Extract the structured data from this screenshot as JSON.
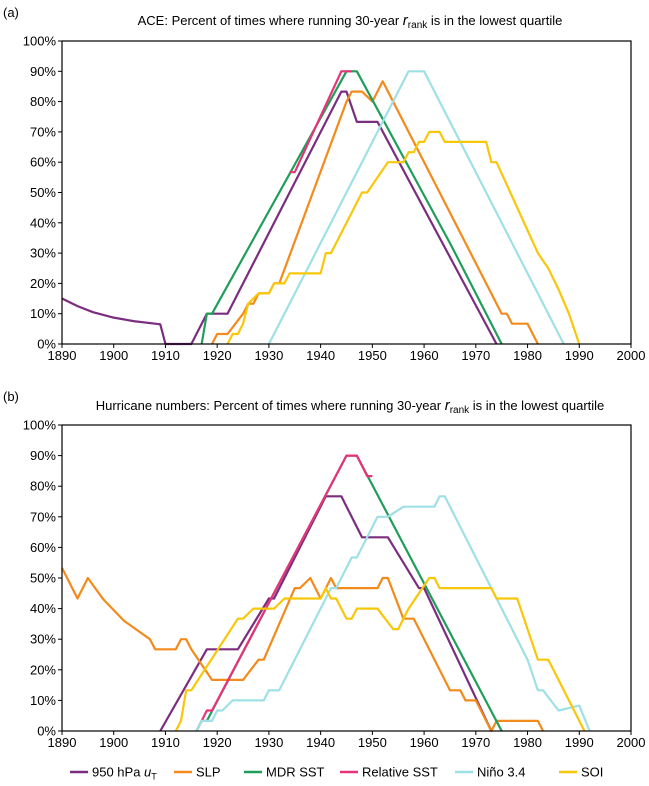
{
  "colors": {
    "wind": "#7b2d7f",
    "slp": "#f28a1c",
    "mdr": "#1f9e5a",
    "rel": "#e8337a",
    "nino": "#9fe0e6",
    "soi": "#f7c70a"
  },
  "legend": {
    "items": [
      {
        "key": "wind",
        "label": "950 hPa u",
        "sub": "T"
      },
      {
        "key": "slp",
        "label": "SLP",
        "sub": ""
      },
      {
        "key": "mdr",
        "label": "MDR SST",
        "sub": ""
      },
      {
        "key": "rel",
        "label": "Relative SST",
        "sub": ""
      },
      {
        "key": "nino",
        "label": "Niño 3.4",
        "sub": ""
      },
      {
        "key": "soi",
        "label": "SOI",
        "sub": ""
      }
    ]
  },
  "chart_data": [
    {
      "type": "line",
      "panel_label": "(a)",
      "title_pre": "ACE: Percent of times where running 30-year ",
      "title_r": "r",
      "title_sub": "rank",
      "title_post": " is in the lowest quartile",
      "xlim": [
        1890,
        2000
      ],
      "ylim": [
        0,
        100
      ],
      "xticks": [
        1890,
        1900,
        1910,
        1920,
        1930,
        1940,
        1950,
        1960,
        1970,
        1980,
        1990,
        2000
      ],
      "yticks": [
        "0%",
        "10%",
        "20%",
        "30%",
        "40%",
        "50%",
        "60%",
        "70%",
        "80%",
        "90%",
        "100%"
      ],
      "series": [
        {
          "key": "wind",
          "points": [
            [
              1890,
              15
            ],
            [
              1893,
              12.5
            ],
            [
              1896,
              10.5
            ],
            [
              1900,
              8.7
            ],
            [
              1904,
              7.5
            ],
            [
              1908,
              6.7
            ],
            [
              1909,
              6.5
            ],
            [
              1910,
              0
            ],
            [
              1915,
              0
            ],
            [
              1918,
              10
            ],
            [
              1922,
              10
            ],
            [
              1944,
              83.3
            ],
            [
              1945,
              83.3
            ],
            [
              1947,
              73.3
            ],
            [
              1951,
              73.3
            ],
            [
              1974,
              0
            ]
          ]
        },
        {
          "key": "slp",
          "points": [
            [
              1919,
              0
            ],
            [
              1920,
              3.3
            ],
            [
              1922,
              3.3
            ],
            [
              1925,
              10
            ],
            [
              1926,
              13.3
            ],
            [
              1927,
              13.3
            ],
            [
              1928,
              16.7
            ],
            [
              1930,
              16.7
            ],
            [
              1931,
              20
            ],
            [
              1932,
              20
            ],
            [
              1945,
              80
            ],
            [
              1946,
              83.3
            ],
            [
              1948,
              83.3
            ],
            [
              1950,
              80
            ],
            [
              1952,
              86.7
            ],
            [
              1975,
              10
            ],
            [
              1976,
              10
            ],
            [
              1977,
              6.7
            ],
            [
              1980,
              6.7
            ],
            [
              1982,
              0
            ]
          ]
        },
        {
          "key": "mdr",
          "points": [
            [
              1917,
              0
            ],
            [
              1918,
              10
            ],
            [
              1919,
              10
            ],
            [
              1945,
              90
            ],
            [
              1947,
              90
            ],
            [
              1965,
              33.3
            ],
            [
              1966,
              30
            ],
            [
              1975,
              0
            ]
          ]
        },
        {
          "key": "rel",
          "points": [
            [
              1934,
              56.7
            ],
            [
              1935,
              56.7
            ],
            [
              1944,
              90
            ],
            [
              1946,
              90
            ]
          ]
        },
        {
          "key": "nino",
          "points": [
            [
              1930,
              0
            ],
            [
              1957,
              90
            ],
            [
              1960,
              90
            ],
            [
              1987,
              0
            ]
          ]
        },
        {
          "key": "soi",
          "points": [
            [
              1922,
              0
            ],
            [
              1923,
              3.3
            ],
            [
              1924,
              3.3
            ],
            [
              1925,
              6.7
            ],
            [
              1926,
              13.3
            ],
            [
              1928,
              16.7
            ],
            [
              1930,
              16.7
            ],
            [
              1931,
              20
            ],
            [
              1933,
              20
            ],
            [
              1934,
              23.3
            ],
            [
              1940,
              23.3
            ],
            [
              1941,
              30
            ],
            [
              1942,
              30
            ],
            [
              1948,
              50
            ],
            [
              1949,
              50
            ],
            [
              1953,
              60
            ],
            [
              1956,
              60
            ],
            [
              1957,
              63.3
            ],
            [
              1958,
              63.3
            ],
            [
              1959,
              66.7
            ],
            [
              1960,
              66.7
            ],
            [
              1961,
              70
            ],
            [
              1963,
              70
            ],
            [
              1964,
              66.7
            ],
            [
              1972,
              66.7
            ],
            [
              1973,
              60
            ],
            [
              1974,
              60
            ],
            [
              1982,
              30
            ],
            [
              1984,
              25
            ],
            [
              1986,
              18
            ],
            [
              1988,
              10
            ],
            [
              1990,
              0
            ]
          ]
        }
      ]
    },
    {
      "type": "line",
      "panel_label": "(b)",
      "title_pre": "Hurricane numbers: Percent of times where running 30-year ",
      "title_r": "r",
      "title_sub": "rank",
      "title_post": " is in the lowest quartile",
      "xlim": [
        1890,
        2000
      ],
      "ylim": [
        0,
        100
      ],
      "xticks": [
        1890,
        1900,
        1910,
        1920,
        1930,
        1940,
        1950,
        1960,
        1970,
        1980,
        1990,
        2000
      ],
      "yticks": [
        "0%",
        "10%",
        "20%",
        "30%",
        "40%",
        "50%",
        "60%",
        "70%",
        "80%",
        "90%",
        "100%"
      ],
      "series": [
        {
          "key": "wind",
          "points": [
            [
              1909,
              0
            ],
            [
              1918,
              26.7
            ],
            [
              1924,
              26.7
            ],
            [
              1930,
              43.3
            ],
            [
              1931,
              43.3
            ],
            [
              1941,
              76.7
            ],
            [
              1944,
              76.7
            ],
            [
              1948,
              63.3
            ],
            [
              1953,
              63.3
            ],
            [
              1959,
              46.7
            ],
            [
              1960,
              46.7
            ],
            [
              1973,
              0
            ]
          ]
        },
        {
          "key": "slp",
          "points": [
            [
              1890,
              53.3
            ],
            [
              1893,
              43.3
            ],
            [
              1895,
              50
            ],
            [
              1898,
              43
            ],
            [
              1902,
              36
            ],
            [
              1907,
              30
            ],
            [
              1908,
              26.7
            ],
            [
              1912,
              26.7
            ],
            [
              1913,
              30
            ],
            [
              1914,
              30
            ],
            [
              1915,
              26.7
            ],
            [
              1919,
              16.7
            ],
            [
              1925,
              16.7
            ],
            [
              1928,
              23.3
            ],
            [
              1929,
              23.3
            ],
            [
              1935,
              46.7
            ],
            [
              1936,
              46.7
            ],
            [
              1938,
              50
            ],
            [
              1940,
              43.3
            ],
            [
              1942,
              50
            ],
            [
              1943,
              46.7
            ],
            [
              1951,
              46.7
            ],
            [
              1952,
              50
            ],
            [
              1953,
              50
            ],
            [
              1956,
              36.7
            ],
            [
              1958,
              36.7
            ],
            [
              1965,
              13.3
            ],
            [
              1967,
              13.3
            ],
            [
              1968,
              10
            ],
            [
              1970,
              10
            ],
            [
              1973,
              0
            ],
            [
              1974,
              3.3
            ],
            [
              1982,
              3.3
            ],
            [
              1983,
              0
            ]
          ]
        },
        {
          "key": "mdr",
          "points": [
            [
              1916,
              0
            ],
            [
              1917,
              3.3
            ],
            [
              1918,
              3.3
            ],
            [
              1945,
              90
            ],
            [
              1947,
              90
            ],
            [
              1975,
              0
            ]
          ]
        },
        {
          "key": "rel",
          "points": [
            [
              1916,
              0
            ],
            [
              1917,
              3.3
            ],
            [
              1918,
              6.7
            ],
            [
              1919,
              6.7
            ],
            [
              1945,
              90
            ],
            [
              1947,
              90
            ],
            [
              1949,
              83.3
            ],
            [
              1950,
              83.3
            ]
          ]
        },
        {
          "key": "nino",
          "points": [
            [
              1916,
              0
            ],
            [
              1917,
              3.3
            ],
            [
              1919,
              3.3
            ],
            [
              1920,
              6.7
            ],
            [
              1921,
              6.7
            ],
            [
              1923,
              10
            ],
            [
              1929,
              10
            ],
            [
              1930,
              13.3
            ],
            [
              1932,
              13.3
            ],
            [
              1942,
              46.7
            ],
            [
              1943,
              46.7
            ],
            [
              1946,
              56.7
            ],
            [
              1947,
              56.7
            ],
            [
              1951,
              70
            ],
            [
              1953,
              70
            ],
            [
              1956,
              73.3
            ],
            [
              1962,
              73.3
            ],
            [
              1963,
              76.7
            ],
            [
              1964,
              76.7
            ],
            [
              1980,
              23.3
            ],
            [
              1982,
              13.3
            ],
            [
              1983,
              13.3
            ],
            [
              1986,
              6.7
            ],
            [
              1990,
              8.3
            ],
            [
              1992,
              0
            ]
          ]
        },
        {
          "key": "soi",
          "points": [
            [
              1912,
              0
            ],
            [
              1913,
              3.3
            ],
            [
              1914,
              13.3
            ],
            [
              1915,
              13.3
            ],
            [
              1924,
              36.7
            ],
            [
              1925,
              36.7
            ],
            [
              1927,
              40
            ],
            [
              1931,
              40
            ],
            [
              1933,
              43.3
            ],
            [
              1940,
              43.3
            ],
            [
              1941,
              46.7
            ],
            [
              1942,
              43.3
            ],
            [
              1943,
              43.3
            ],
            [
              1945,
              36.7
            ],
            [
              1946,
              36.7
            ],
            [
              1947,
              40
            ],
            [
              1951,
              40
            ],
            [
              1954,
              33.3
            ],
            [
              1955,
              33.3
            ],
            [
              1957,
              40
            ],
            [
              1961,
              50
            ],
            [
              1962,
              50
            ],
            [
              1963,
              46.7
            ],
            [
              1973,
              46.7
            ],
            [
              1974,
              43.3
            ],
            [
              1978,
              43.3
            ],
            [
              1982,
              23.3
            ],
            [
              1984,
              23.3
            ],
            [
              1985,
              20
            ],
            [
              1988,
              10
            ],
            [
              1991,
              0
            ]
          ]
        }
      ]
    }
  ]
}
